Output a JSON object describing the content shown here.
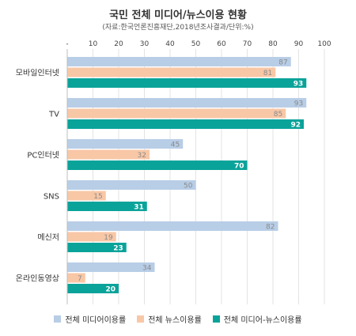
{
  "chart_data": {
    "type": "bar",
    "orientation": "horizontal",
    "title": "국민 전체 미디어/뉴스이용 현황",
    "subtitle": "(자료:한국언론진흥재단,2018년조사결과/단위:%)",
    "x_ticks": [
      "-",
      "10",
      "20",
      "30",
      "40",
      "50",
      "60",
      "70",
      "80",
      "90",
      "100"
    ],
    "xlim": [
      0,
      100
    ],
    "grid": true,
    "legend_position": "bottom",
    "categories": [
      "모바일인터넷",
      "TV",
      "PC인터넷",
      "SNS",
      "메신저",
      "온라인동영상"
    ],
    "series": [
      {
        "name": "전체 미디어이용률",
        "color": "#b8cde6",
        "label_color": "#8a8a8a",
        "label_bold": false,
        "values": [
          87,
          93,
          45,
          50,
          82,
          34
        ]
      },
      {
        "name": "전체 뉴스이용률",
        "color": "#f8c7a6",
        "label_color": "#8a8a8a",
        "label_bold": false,
        "values": [
          81,
          85,
          32,
          15,
          19,
          7
        ]
      },
      {
        "name": "전체 미디어-뉴스이용률",
        "color": "#0aa39a",
        "label_color": "#ffffff",
        "label_bold": true,
        "values": [
          93,
          92,
          70,
          31,
          23,
          20
        ]
      }
    ]
  }
}
